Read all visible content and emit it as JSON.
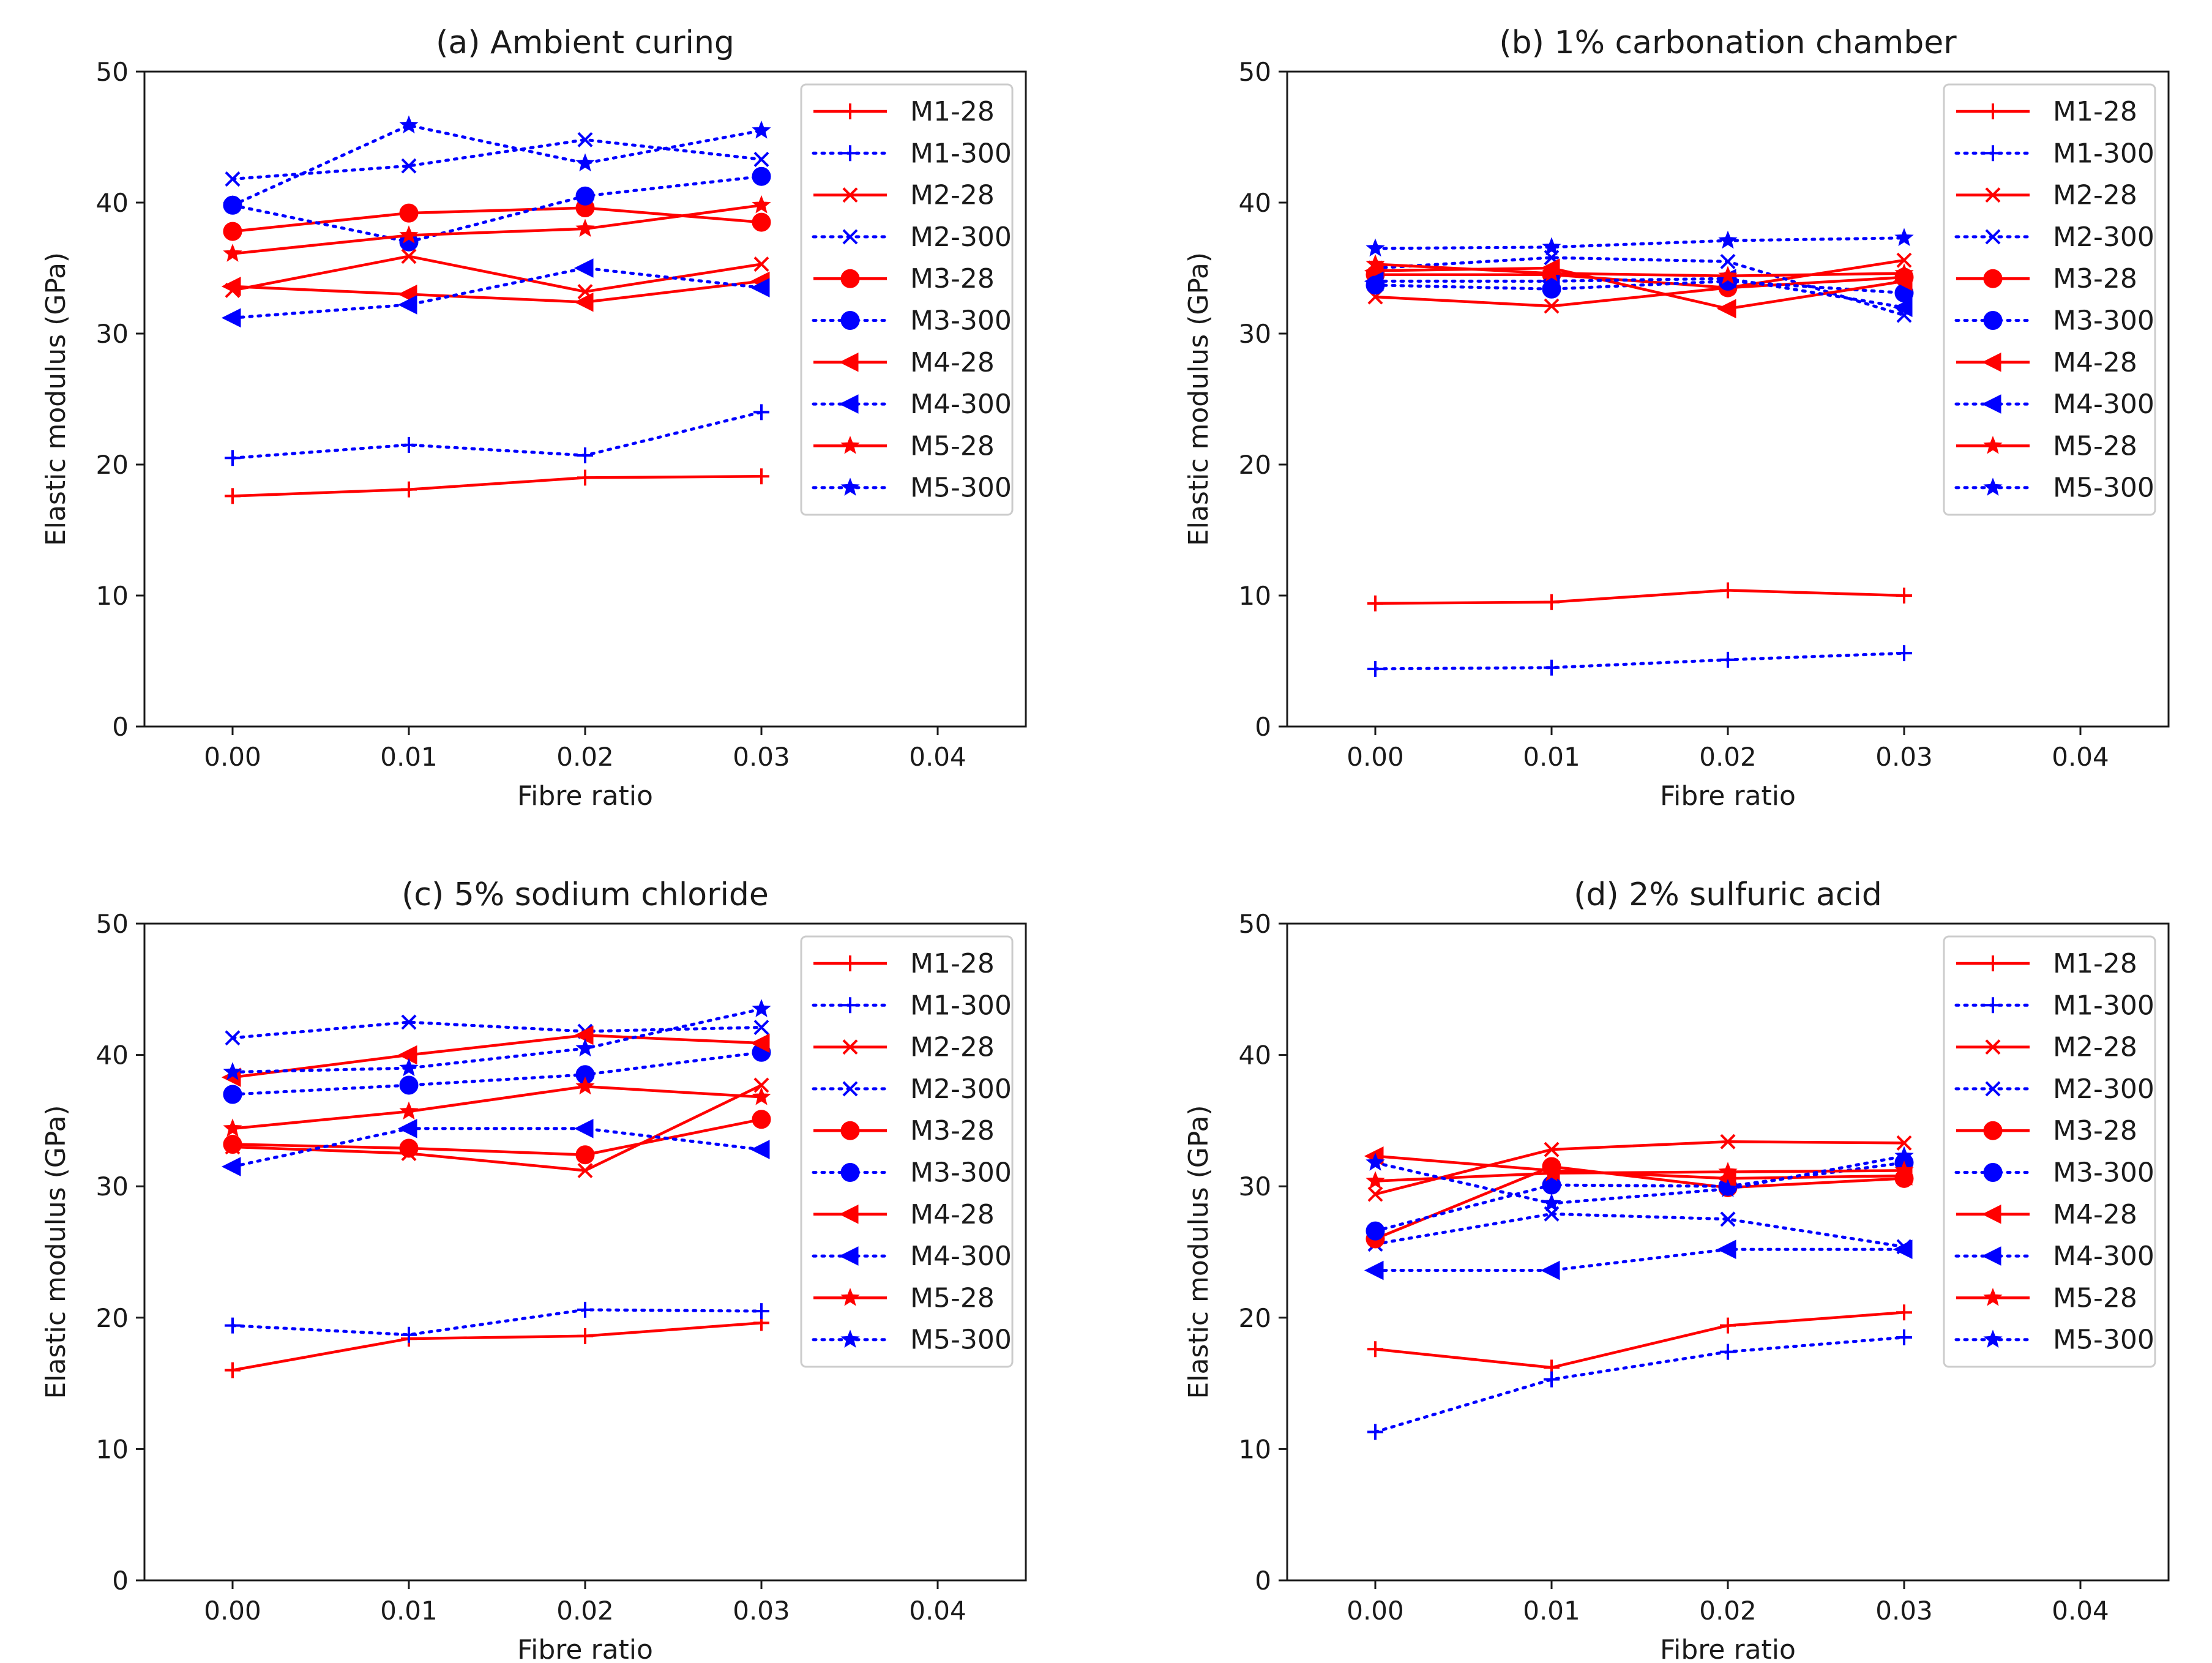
{
  "chart_data": [
    {
      "type": "line",
      "title": "(a) Ambient curing",
      "xlabel": "Fibre ratio",
      "ylabel": "Elastic modulus (GPa)",
      "xlim": [
        -0.005,
        0.045
      ],
      "ylim": [
        0,
        50
      ],
      "xticks": [
        "0.00",
        "0.01",
        "0.02",
        "0.03",
        "0.04"
      ],
      "yticks": [
        "0",
        "10",
        "20",
        "30",
        "40",
        "50"
      ],
      "legend_position": "top-right",
      "x": [
        0.0,
        0.01,
        0.02,
        0.03
      ],
      "series": [
        {
          "name": "M1-28",
          "values": [
            17.6,
            18.1,
            19.0,
            19.1
          ]
        },
        {
          "name": "M1-300",
          "values": [
            20.5,
            21.5,
            20.7,
            24.0
          ]
        },
        {
          "name": "M2-28",
          "values": [
            33.3,
            35.9,
            33.2,
            35.3
          ]
        },
        {
          "name": "M2-300",
          "values": [
            41.8,
            42.8,
            44.8,
            43.3
          ]
        },
        {
          "name": "M3-28",
          "values": [
            37.8,
            39.2,
            39.6,
            38.5
          ]
        },
        {
          "name": "M3-300",
          "values": [
            39.8,
            37.0,
            40.5,
            42.0
          ]
        },
        {
          "name": "M4-28",
          "values": [
            33.6,
            33.0,
            32.4,
            34.0
          ]
        },
        {
          "name": "M4-300",
          "values": [
            31.2,
            32.2,
            35.0,
            33.5
          ]
        },
        {
          "name": "M5-28",
          "values": [
            36.1,
            37.5,
            38.0,
            39.8
          ]
        },
        {
          "name": "M5-300",
          "values": [
            39.8,
            45.9,
            43.0,
            45.5
          ]
        }
      ]
    },
    {
      "type": "line",
      "title": "(b) 1% carbonation chamber",
      "xlabel": "Fibre ratio",
      "ylabel": "Elastic modulus (GPa)",
      "xlim": [
        -0.005,
        0.045
      ],
      "ylim": [
        0,
        50
      ],
      "xticks": [
        "0.00",
        "0.01",
        "0.02",
        "0.03",
        "0.04"
      ],
      "yticks": [
        "0",
        "10",
        "20",
        "30",
        "40",
        "50"
      ],
      "legend_position": "top-right",
      "x": [
        0.0,
        0.01,
        0.02,
        0.03
      ],
      "series": [
        {
          "name": "M1-28",
          "values": [
            9.4,
            9.5,
            10.4,
            10.0
          ]
        },
        {
          "name": "M1-300",
          "values": [
            4.4,
            4.5,
            5.1,
            5.6
          ]
        },
        {
          "name": "M2-28",
          "values": [
            32.8,
            32.1,
            33.5,
            35.6
          ]
        },
        {
          "name": "M2-300",
          "values": [
            35.0,
            35.8,
            35.5,
            31.4
          ]
        },
        {
          "name": "M3-28",
          "values": [
            34.5,
            34.5,
            33.5,
            34.3
          ]
        },
        {
          "name": "M3-300",
          "values": [
            33.7,
            33.4,
            34.0,
            33.1
          ]
        },
        {
          "name": "M4-28",
          "values": [
            34.8,
            35.0,
            31.9,
            34.0
          ]
        },
        {
          "name": "M4-300",
          "values": [
            34.0,
            34.0,
            34.2,
            32.0
          ]
        },
        {
          "name": "M5-28",
          "values": [
            35.3,
            34.6,
            34.4,
            34.6
          ]
        },
        {
          "name": "M5-300",
          "values": [
            36.5,
            36.6,
            37.1,
            37.3
          ]
        }
      ]
    },
    {
      "type": "line",
      "title": "(c) 5% sodium chloride",
      "xlabel": "Fibre ratio",
      "ylabel": "Elastic modulus (GPa)",
      "xlim": [
        -0.005,
        0.045
      ],
      "ylim": [
        0,
        50
      ],
      "xticks": [
        "0.00",
        "0.01",
        "0.02",
        "0.03",
        "0.04"
      ],
      "yticks": [
        "0",
        "10",
        "20",
        "30",
        "40",
        "50"
      ],
      "legend_position": "top-right",
      "x": [
        0.0,
        0.01,
        0.02,
        0.03
      ],
      "series": [
        {
          "name": "M1-28",
          "values": [
            16.0,
            18.4,
            18.6,
            19.6
          ]
        },
        {
          "name": "M1-300",
          "values": [
            19.4,
            18.7,
            20.6,
            20.5
          ]
        },
        {
          "name": "M2-28",
          "values": [
            33.0,
            32.5,
            31.2,
            37.7
          ]
        },
        {
          "name": "M2-300",
          "values": [
            41.3,
            42.5,
            41.8,
            42.1
          ]
        },
        {
          "name": "M3-28",
          "values": [
            33.2,
            32.9,
            32.4,
            35.1
          ]
        },
        {
          "name": "M3-300",
          "values": [
            37.0,
            37.7,
            38.5,
            40.2
          ]
        },
        {
          "name": "M4-28",
          "values": [
            38.3,
            40.0,
            41.5,
            40.9
          ]
        },
        {
          "name": "M4-300",
          "values": [
            31.5,
            34.4,
            34.4,
            32.8
          ]
        },
        {
          "name": "M5-28",
          "values": [
            34.4,
            35.7,
            37.6,
            36.8
          ]
        },
        {
          "name": "M5-300",
          "values": [
            38.7,
            39.0,
            40.5,
            43.5
          ]
        }
      ]
    },
    {
      "type": "line",
      "title": "(d) 2% sulfuric acid",
      "xlabel": "Fibre ratio",
      "ylabel": "Elastic modulus (GPa)",
      "xlim": [
        -0.005,
        0.045
      ],
      "ylim": [
        0,
        50
      ],
      "xticks": [
        "0.00",
        "0.01",
        "0.02",
        "0.03",
        "0.04"
      ],
      "yticks": [
        "0",
        "10",
        "20",
        "30",
        "40",
        "50"
      ],
      "legend_position": "top-right",
      "x": [
        0.0,
        0.01,
        0.02,
        0.03
      ],
      "series": [
        {
          "name": "M1-28",
          "values": [
            17.6,
            16.2,
            19.4,
            20.4
          ]
        },
        {
          "name": "M1-300",
          "values": [
            11.3,
            15.3,
            17.4,
            18.5
          ]
        },
        {
          "name": "M2-28",
          "values": [
            29.4,
            32.8,
            33.4,
            33.3
          ]
        },
        {
          "name": "M2-300",
          "values": [
            25.6,
            27.9,
            27.5,
            25.4
          ]
        },
        {
          "name": "M3-28",
          "values": [
            26.0,
            31.5,
            29.9,
            30.6
          ]
        },
        {
          "name": "M3-300",
          "values": [
            26.6,
            30.1,
            30.0,
            31.8
          ]
        },
        {
          "name": "M4-28",
          "values": [
            32.3,
            31.2,
            30.6,
            30.8
          ]
        },
        {
          "name": "M4-300",
          "values": [
            23.6,
            23.6,
            25.2,
            25.2
          ]
        },
        {
          "name": "M5-28",
          "values": [
            30.4,
            31.0,
            31.1,
            31.2
          ]
        },
        {
          "name": "M5-300",
          "values": [
            31.8,
            28.7,
            29.8,
            32.3
          ]
        }
      ]
    }
  ],
  "colors": {
    "age_28": "#ff0000",
    "age_300": "#0000ff",
    "axis": "#1a1a1a"
  },
  "markers": {
    "M1": "plus",
    "M2": "x",
    "M3": "circle",
    "M4": "triangle-left",
    "M5": "star"
  }
}
